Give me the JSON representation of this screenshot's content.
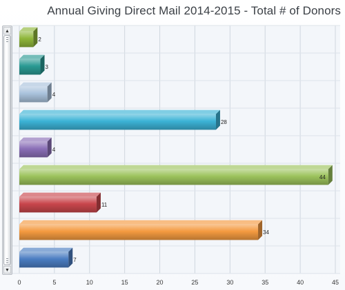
{
  "chart_data": {
    "type": "bar",
    "orientation": "horizontal",
    "title": "Annual Giving Direct Mail 2014-2015 - Total # of Donors",
    "xlabel": "",
    "ylabel": "",
    "xlim": [
      0,
      45
    ],
    "x_ticks": [
      "0",
      "5",
      "10",
      "15",
      "20",
      "25",
      "30",
      "35",
      "40",
      "45"
    ],
    "grid": true,
    "values": [
      2,
      3,
      4,
      28,
      4,
      44,
      11,
      34,
      7
    ],
    "value_labels": [
      "2",
      "3",
      "4",
      "28",
      "4",
      "44",
      "11",
      "34",
      "7"
    ],
    "colors": [
      "#8fb63a",
      "#2a9a93",
      "#a9c2dc",
      "#3cb3d6",
      "#8a6fb7",
      "#9cc35c",
      "#c9464c",
      "#f49a40",
      "#4b7dc2"
    ],
    "inner_label_index": 5
  },
  "scrollbar": {
    "up_arrow": "▲",
    "down_arrow": "▼"
  }
}
